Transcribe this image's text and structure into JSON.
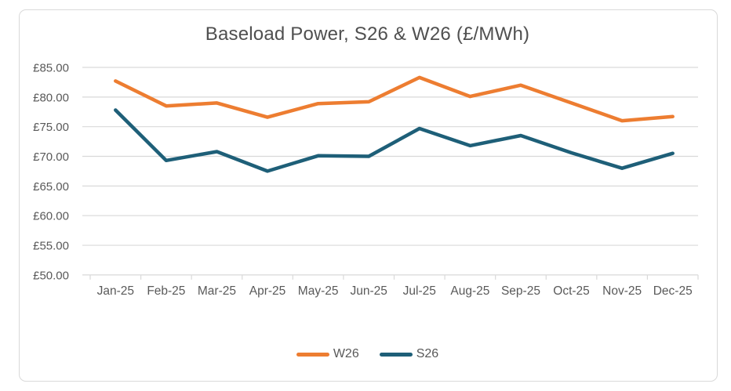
{
  "chart": {
    "title": "Baseload Power, S26 & W26 (£/MWh)"
  },
  "colors": {
    "gridline": "#d9d9d9",
    "axis_text": "#595959",
    "title_text": "#4f4f4f",
    "frame_border": "#d9d9d9",
    "background": "#ffffff",
    "w26_orange": "#ED7D31",
    "s26_teal": "#1E5F78"
  },
  "chart_data": {
    "type": "line",
    "title": "Baseload Power, S26 & W26 (£/MWh)",
    "categories": [
      "Jan-25",
      "Feb-25",
      "Mar-25",
      "Apr-25",
      "May-25",
      "Jun-25",
      "Jul-25",
      "Aug-25",
      "Sep-25",
      "Oct-25",
      "Nov-25",
      "Dec-25"
    ],
    "series": [
      {
        "name": "W26",
        "color": "#ED7D31",
        "values": [
          82.7,
          78.5,
          79.0,
          76.6,
          78.9,
          79.2,
          83.3,
          80.1,
          82.0,
          79.0,
          76.0,
          76.7
        ]
      },
      {
        "name": "S26",
        "color": "#1E5F78",
        "values": [
          77.8,
          69.3,
          70.8,
          67.5,
          70.1,
          70.0,
          74.7,
          71.8,
          73.5,
          70.6,
          68.0,
          70.5
        ]
      }
    ],
    "xlabel": "",
    "ylabel": "",
    "ylim": [
      50,
      85
    ],
    "y_step": 5,
    "y_tick_labels": [
      "£85.00",
      "£80.00",
      "£75.00",
      "£70.00",
      "£65.00",
      "£60.00",
      "£55.00",
      "£50.00"
    ],
    "grid": true,
    "legend_position": "bottom"
  }
}
